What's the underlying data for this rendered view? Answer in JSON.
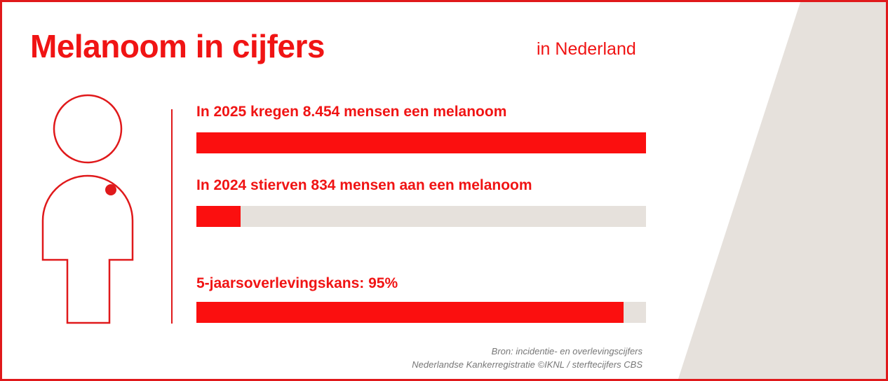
{
  "header": {
    "title": "Melanoom in cijfers",
    "region": "in Nederland"
  },
  "colors": {
    "accent": "#f01414",
    "bar_fill": "#fb0f0f",
    "bar_track": "#e6e1dc",
    "wedge": "#e6e1dc",
    "source_text": "#777777"
  },
  "icons": {
    "figure": "person-with-mole-icon"
  },
  "chart_data": {
    "type": "bar",
    "orientation": "horizontal",
    "bars": [
      {
        "label": "In 2025 kregen 8.454 mensen een melanoom",
        "value": 8454,
        "max": 8454
      },
      {
        "label": "In 2024 stierven 834 mensen aan een melanoom",
        "value": 834,
        "max": 8454
      },
      {
        "label": "5-jaarsoverlevingskans: 95%",
        "value": 95,
        "max": 100
      }
    ]
  },
  "source": {
    "line1": "Bron: incidentie- en overlevingscijfers",
    "line2": "Nederlandse Kankerregistratie ©IKNL / sterftecijfers CBS"
  }
}
